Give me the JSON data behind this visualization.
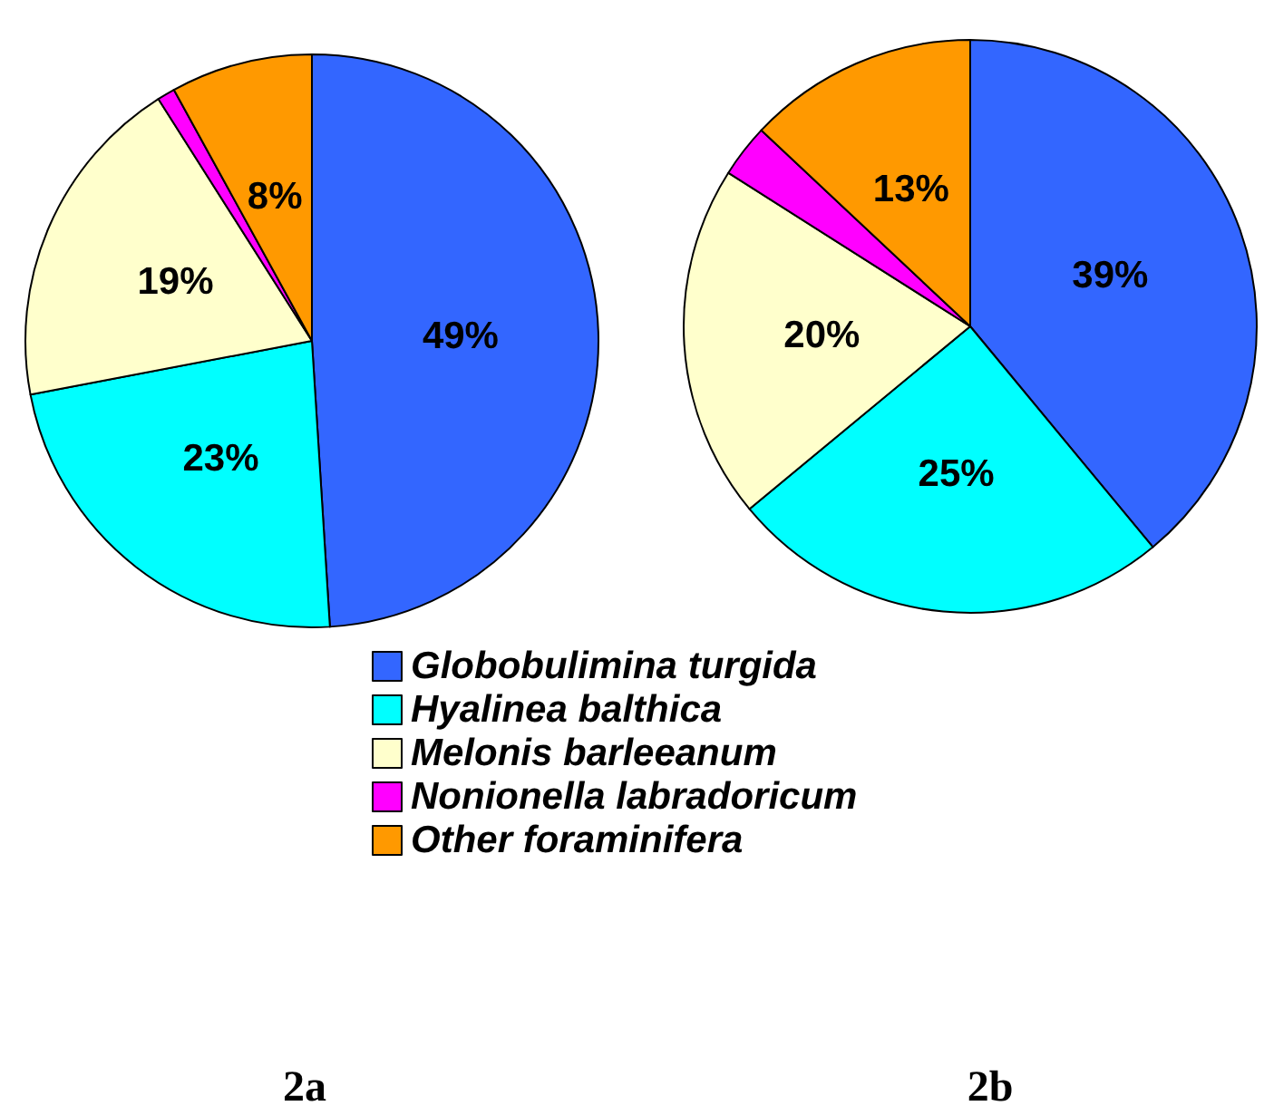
{
  "chart_data": [
    {
      "type": "pie",
      "title": "2a",
      "categories": [
        "Globobulimina turgida",
        "Hyalinea balthica",
        "Melonis barleeanum",
        "Nonionella labradoricum",
        "Other foraminifera"
      ],
      "values": [
        49,
        23,
        19,
        1,
        8
      ],
      "value_labels": [
        "49%",
        "23%",
        "19%",
        null,
        "8%"
      ],
      "colors": [
        "#3366ff",
        "#00ffff",
        "#ffffcc",
        "#ff00ff",
        "#ff9900"
      ],
      "legend": "bottom"
    },
    {
      "type": "pie",
      "title": "2b",
      "categories": [
        null,
        null,
        null,
        null,
        null
      ],
      "values": [
        39,
        25,
        20,
        3,
        13
      ],
      "value_labels": [
        "39%",
        "25%",
        "20%",
        null,
        "13%"
      ],
      "colors": [
        "#3366ff",
        "#00ffff",
        "#ffffcc",
        "#ff00ff",
        "#ff9900"
      ],
      "legend": false
    }
  ]
}
